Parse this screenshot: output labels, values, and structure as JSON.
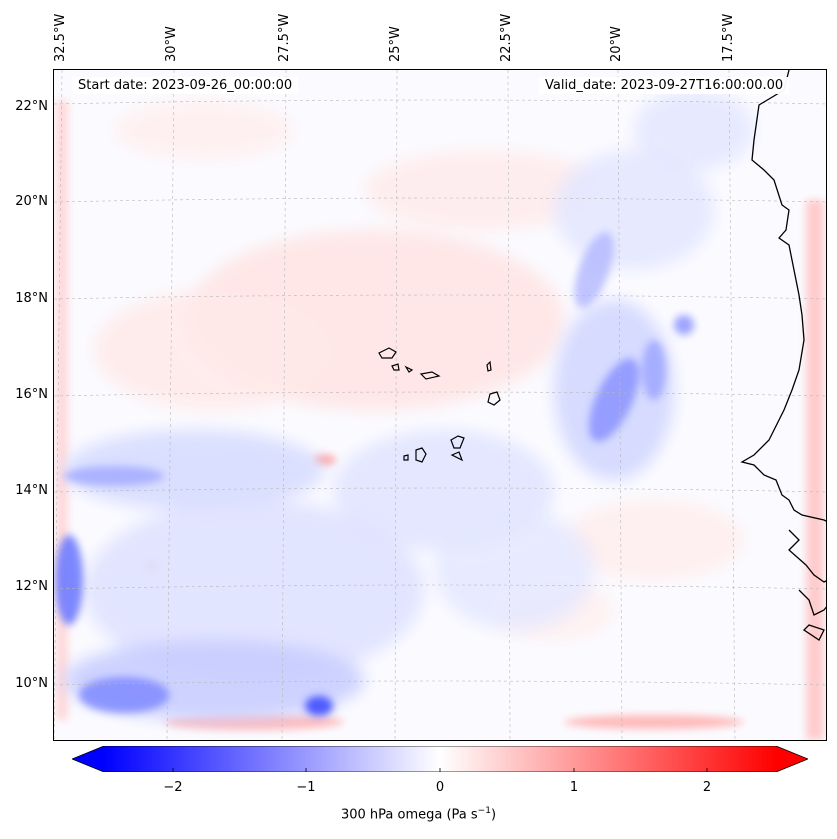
{
  "map": {
    "start_date": "Start date: 2023-09-26_00:00:00",
    "valid_date": "Valid_date: 2023-09-27T16:00:00.00",
    "lon_labels": [
      "32.5°W",
      "30°W",
      "27.5°W",
      "25°W",
      "22.5°W",
      "20°W",
      "17.5°W"
    ],
    "lat_labels": [
      "22°N",
      "20°N",
      "18°N",
      "16°N",
      "14°N",
      "12°N",
      "10°N"
    ],
    "field": "300 hPa omega",
    "colormap": {
      "low": "#0000ff",
      "mid": "#ffffff",
      "high": "#ff0000"
    },
    "coastline_color": "#000000"
  },
  "colorbar": {
    "ticks": [
      "−2",
      "−1",
      "0",
      "1",
      "2"
    ],
    "label_prefix": "300 hPa omega (Pa s",
    "label_exp": "−1",
    "label_suffix": ")"
  }
}
